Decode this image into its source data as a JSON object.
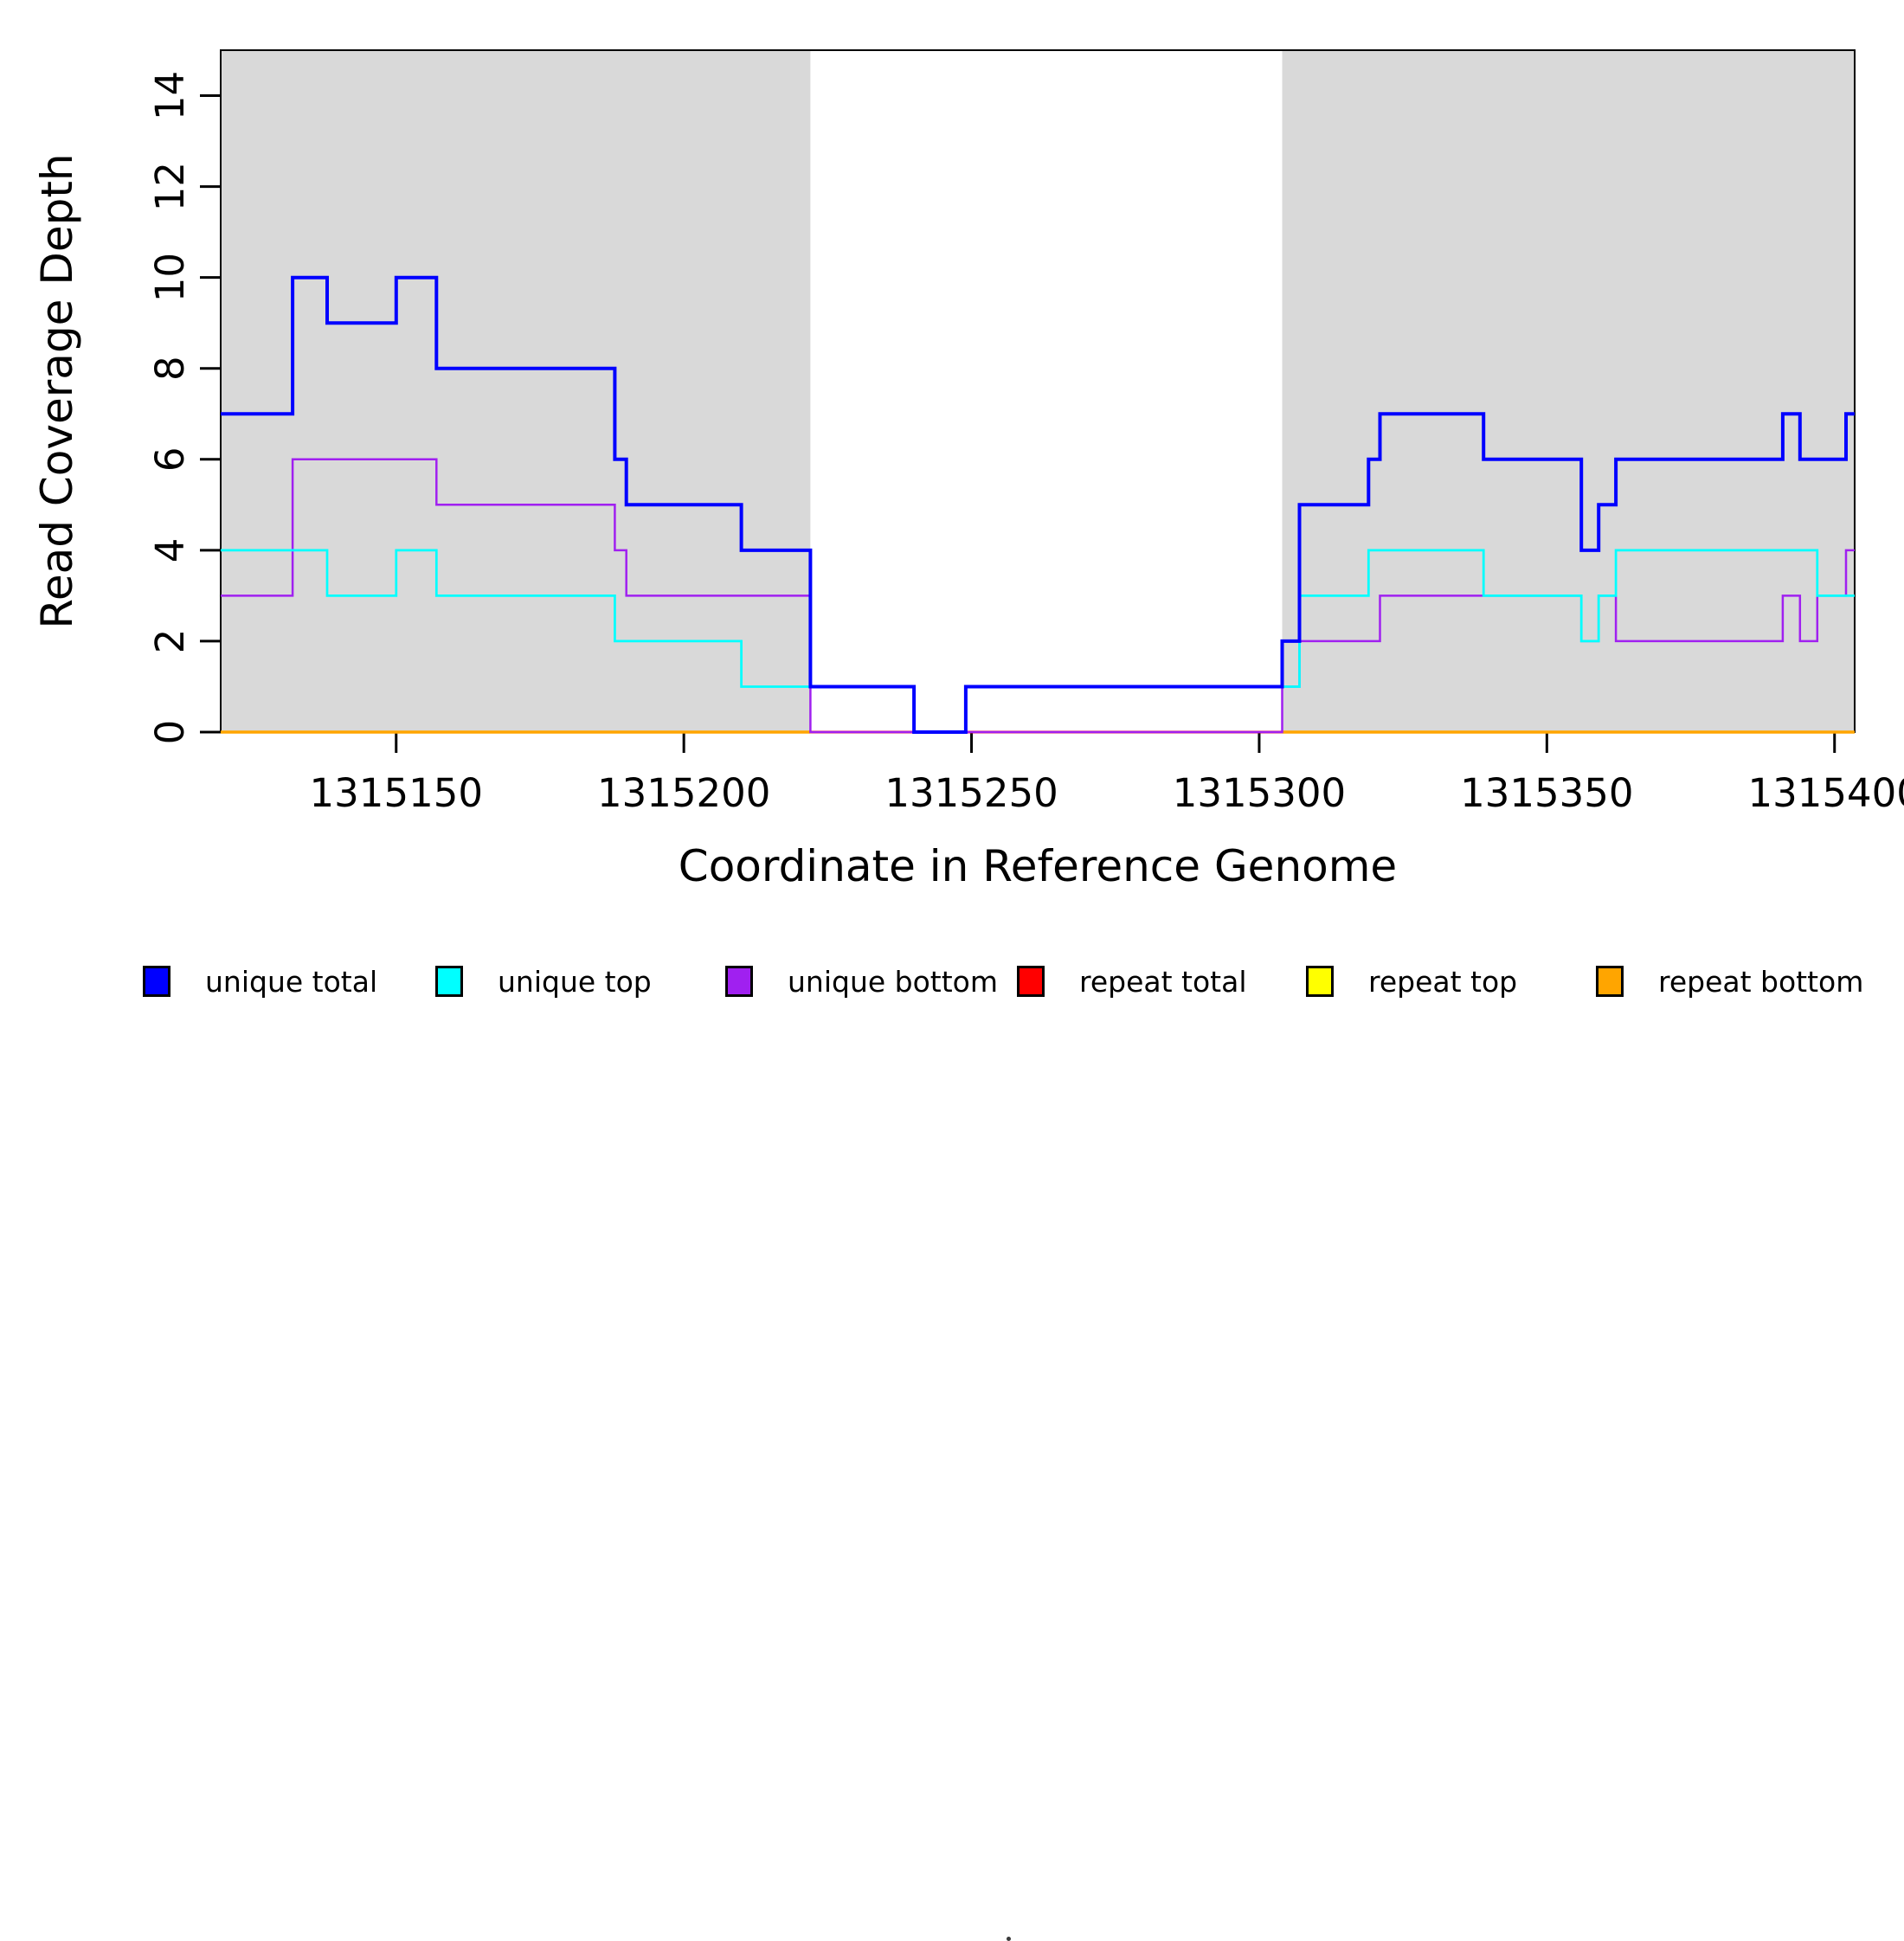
{
  "chart_data": {
    "type": "line",
    "subtype": "step-coverage-plot",
    "title": "",
    "xlabel": "Coordinate in Reference Genome",
    "ylabel": "Read Coverage Depth",
    "xlim": [
      1315119.5,
      1315403.5
    ],
    "ylim": [
      0,
      15
    ],
    "x_ticks": [
      1315150,
      1315200,
      1315250,
      1315300,
      1315350,
      1315400
    ],
    "y_ticks": [
      0,
      2,
      4,
      6,
      8,
      10,
      12,
      14
    ],
    "grid": "off",
    "background_color": "#ffffff",
    "shaded_regions": [
      {
        "name": "unique-region-left",
        "from": 1315119.5,
        "to": 1315222,
        "color": "#D9D9D9"
      },
      {
        "name": "unique-region-right",
        "from": 1315304,
        "to": 1315403.5,
        "color": "#D9D9D9"
      }
    ],
    "series": [
      {
        "name": "repeat top",
        "color": "#FFFF00",
        "width": 2.5,
        "parts": [
          {
            "steps": [
              [
                1315119.5,
                0
              ]
            ],
            "end": 1315403.5
          }
        ]
      },
      {
        "name": "repeat total",
        "color": "#FF0000",
        "width": 3,
        "parts": [
          {
            "steps": [
              [
                1315222,
                0
              ]
            ],
            "end": 1315304
          }
        ]
      },
      {
        "name": "repeat bottom",
        "color": "#FFA500",
        "width": 3.5,
        "parts": [
          {
            "steps": [
              [
                1315119.5,
                0
              ]
            ],
            "end": 1315222
          },
          {
            "steps": [
              [
                1315304,
                0
              ]
            ],
            "end": 1315403.5
          }
        ]
      },
      {
        "name": "unique bottom",
        "color": "#A020F0",
        "width": 2.5,
        "parts": [
          {
            "steps": [
              [
                1315119.5,
                3
              ],
              [
                1315132,
                6
              ],
              [
                1315157,
                5
              ],
              [
                1315188,
                4
              ],
              [
                1315190,
                3
              ],
              [
                1315222,
                0
              ],
              [
                1315304,
                1
              ],
              [
                1315307,
                2
              ],
              [
                1315321,
                3
              ],
              [
                1315356,
                2
              ],
              [
                1315359,
                3
              ],
              [
                1315362,
                2
              ],
              [
                1315391,
                3
              ],
              [
                1315394,
                2
              ],
              [
                1315397,
                3
              ],
              [
                1315402,
                4
              ]
            ],
            "end": 1315403.5
          }
        ]
      },
      {
        "name": "unique top",
        "color": "#00FFFF",
        "width": 2.75,
        "parts": [
          {
            "steps": [
              [
                1315119.5,
                4
              ],
              [
                1315138,
                3
              ],
              [
                1315150,
                4
              ],
              [
                1315157,
                3
              ],
              [
                1315188,
                2
              ],
              [
                1315210,
                1
              ],
              [
                1315240,
                0
              ],
              [
                1315249,
                1
              ],
              [
                1315307,
                3
              ],
              [
                1315319,
                4
              ],
              [
                1315339,
                3
              ],
              [
                1315356,
                2
              ],
              [
                1315359,
                3
              ],
              [
                1315362,
                4
              ],
              [
                1315397,
                3
              ]
            ],
            "end": 1315403.5
          }
        ]
      },
      {
        "name": "unique total",
        "color": "#0000FF",
        "width": 4,
        "parts": [
          {
            "steps": [
              [
                1315119.5,
                7
              ],
              [
                1315132,
                10
              ],
              [
                1315138,
                9
              ],
              [
                1315150,
                10
              ],
              [
                1315157,
                8
              ],
              [
                1315188,
                6
              ],
              [
                1315190,
                5
              ],
              [
                1315210,
                4
              ],
              [
                1315222,
                1
              ],
              [
                1315240,
                0
              ],
              [
                1315249,
                1
              ],
              [
                1315304,
                2
              ],
              [
                1315307,
                5
              ],
              [
                1315319,
                6
              ],
              [
                1315321,
                7
              ],
              [
                1315339,
                6
              ],
              [
                1315356,
                4
              ],
              [
                1315359,
                5
              ],
              [
                1315362,
                6
              ],
              [
                1315391,
                7
              ],
              [
                1315394,
                6
              ],
              [
                1315402,
                7
              ]
            ],
            "end": 1315403.5
          }
        ]
      }
    ],
    "legend_position": "bottom"
  },
  "legend": {
    "items": [
      {
        "label": "unique total",
        "color": "#0000FF"
      },
      {
        "label": "unique top",
        "color": "#00FFFF"
      },
      {
        "label": "unique bottom",
        "color": "#A020F0"
      },
      {
        "label": "repeat total",
        "color": "#FF0000"
      },
      {
        "label": "repeat top",
        "color": "#FFFF00"
      },
      {
        "label": "repeat bottom",
        "color": "#FFA500"
      }
    ],
    "has_stray_dot_artifact": true
  }
}
